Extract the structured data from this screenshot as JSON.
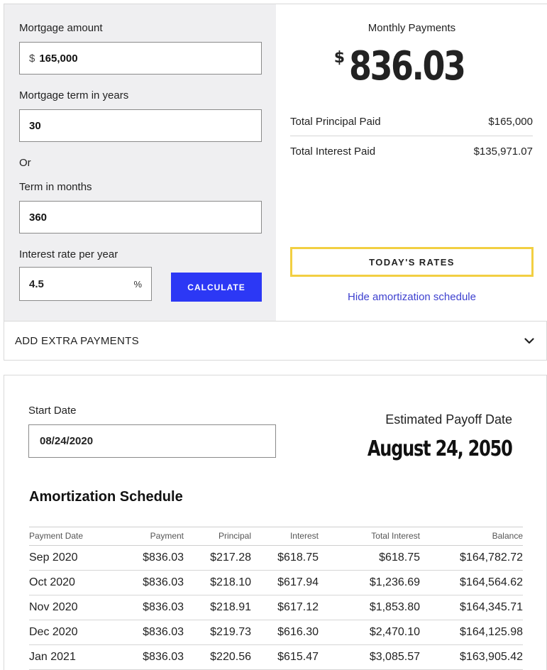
{
  "form": {
    "mortgage_amount_label": "Mortgage amount",
    "currency_symbol": "$",
    "mortgage_amount_value": "165,000",
    "term_years_label": "Mortgage term in years",
    "term_years_value": "30",
    "or_label": "Or",
    "term_months_label": "Term in months",
    "term_months_value": "360",
    "interest_rate_label": "Interest rate per year",
    "interest_rate_value": "4.5",
    "percent_symbol": "%",
    "calculate_label": "CALCULATE"
  },
  "results": {
    "monthly_payments_label": "Monthly Payments",
    "currency_symbol": "$",
    "monthly_payment_value": "836.03",
    "total_principal_label": "Total Principal Paid",
    "total_principal_value": "$165,000",
    "total_interest_label": "Total Interest Paid",
    "total_interest_value": "$135,971.07",
    "todays_rates_label": "TODAY'S RATES",
    "hide_schedule_label": "Hide amortization schedule"
  },
  "extra_payments": {
    "label": "ADD EXTRA PAYMENTS",
    "icon": "chevron-down-icon"
  },
  "schedule": {
    "start_date_label": "Start Date",
    "start_date_value": "08/24/2020",
    "payoff_label": "Estimated Payoff Date",
    "payoff_value": "August 24, 2050",
    "title": "Amortization Schedule",
    "columns": [
      "Payment Date",
      "Payment",
      "Principal",
      "Interest",
      "Total Interest",
      "Balance"
    ],
    "rows": [
      [
        "Sep 2020",
        "$836.03",
        "$217.28",
        "$618.75",
        "$618.75",
        "$164,782.72"
      ],
      [
        "Oct 2020",
        "$836.03",
        "$218.10",
        "$617.94",
        "$1,236.69",
        "$164,564.62"
      ],
      [
        "Nov 2020",
        "$836.03",
        "$218.91",
        "$617.12",
        "$1,853.80",
        "$164,345.71"
      ],
      [
        "Dec 2020",
        "$836.03",
        "$219.73",
        "$616.30",
        "$2,470.10",
        "$164,125.98"
      ],
      [
        "Jan 2021",
        "$836.03",
        "$220.56",
        "$615.47",
        "$3,085.57",
        "$163,905.42"
      ]
    ]
  },
  "colors": {
    "calculate_button": "#2c38f5",
    "rates_border": "#f2cf42",
    "link": "#3c3fcf",
    "left_panel_bg": "#efeff1"
  }
}
